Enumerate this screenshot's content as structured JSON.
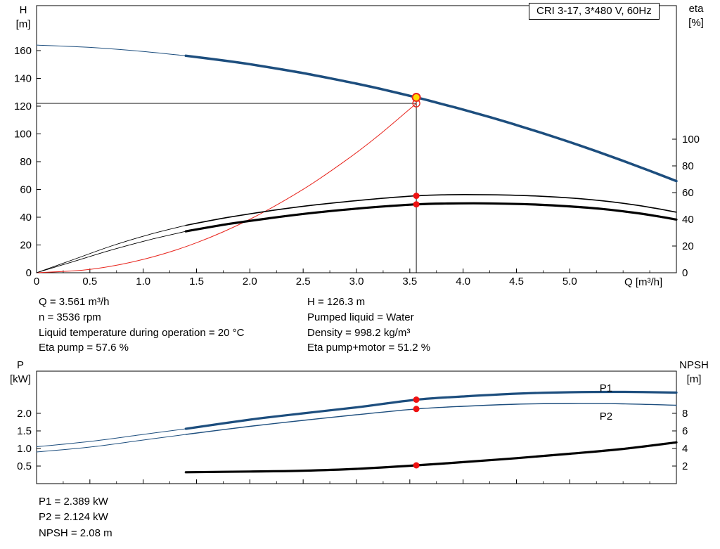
{
  "header": {
    "model_box": "CRI 3-17, 3*480 V, 60Hz"
  },
  "colors": {
    "curve_blue": "#1d4e7e",
    "curve_black": "#000000",
    "curve_red": "#e8251d",
    "duty_yellow": "#ffd900",
    "marker_red": "#ee1111"
  },
  "annotations": {
    "upper_left": [
      "Q = 3.561 m³/h",
      "n = 3536 rpm",
      "Liquid temperature during operation = 20 °C",
      "Eta pump = 57.6 %"
    ],
    "upper_right": [
      "H = 126.3 m",
      "Pumped liquid = Water",
      "Density = 998.2 kg/m³",
      "Eta pump+motor = 51.2 %"
    ],
    "lower": [
      "P1 = 2.389 kW",
      "P2 = 2.124 kW",
      "NPSH = 2.08 m"
    ]
  },
  "chart_data": [
    {
      "id": "qh-chart",
      "type": "line",
      "title": "CRI 3-17, 3*480 V, 60Hz",
      "x_axis": {
        "label": "Q [m³/h]",
        "min": 0,
        "max": 6,
        "ticks": [
          0,
          0.5,
          1,
          1.5,
          2,
          2.5,
          3,
          3.5,
          4,
          4.5,
          5
        ],
        "tick_labels": [
          "0",
          "0.5",
          "1.0",
          "1.5",
          "2.0",
          "2.5",
          "3.0",
          "3.5",
          "4.0",
          "4.5",
          "5.0"
        ],
        "minor_step": 0.25
      },
      "y_left": {
        "label": "H [m]",
        "label_lines": [
          "H",
          "[m]"
        ],
        "min": 0,
        "max": 192.4,
        "ticks": [
          0,
          20,
          40,
          60,
          80,
          100,
          120,
          140,
          160
        ],
        "tick_labels": [
          "0",
          "20",
          "40",
          "60",
          "80",
          "100",
          "120",
          "140",
          "160"
        ]
      },
      "y_right": {
        "label": "eta [%]",
        "label_lines": [
          "eta",
          "[%]"
        ],
        "min": 0,
        "max": 200,
        "ticks": [
          0,
          20,
          40,
          60,
          80,
          100
        ],
        "tick_labels": [
          "0",
          "20",
          "40",
          "60",
          "80",
          "100"
        ]
      },
      "duty_point": {
        "Q": 3.561,
        "H": 126.3,
        "eta_pump": 57.6,
        "eta_pump_motor": 51.2
      },
      "series": [
        {
          "name": "head-curve-lead",
          "axis": "left",
          "color": "#1d4e7e",
          "width": 1,
          "points": [
            [
              0,
              164
            ],
            [
              0.5,
              162.3
            ],
            [
              1,
              159.4
            ],
            [
              1.4,
              156.3
            ]
          ]
        },
        {
          "name": "head-curve",
          "axis": "left",
          "color": "#1d4e7e",
          "width": 3.5,
          "points": [
            [
              1.4,
              156.3
            ],
            [
              1.75,
              152.9
            ],
            [
              2,
              150.2
            ],
            [
              2.25,
              147.1
            ],
            [
              2.5,
              143.8
            ],
            [
              2.75,
              140.1
            ],
            [
              3,
              136.2
            ],
            [
              3.25,
              132
            ],
            [
              3.561,
              126.3
            ],
            [
              3.75,
              122.6
            ],
            [
              4,
              117.5
            ],
            [
              4.25,
              112.1
            ],
            [
              4.5,
              106.4
            ],
            [
              4.75,
              100.4
            ],
            [
              5,
              94.1
            ],
            [
              5.25,
              87.5
            ],
            [
              5.5,
              80.6
            ],
            [
              5.75,
              73.4
            ],
            [
              6,
              66
            ]
          ]
        },
        {
          "name": "system-curve",
          "axis": "left",
          "color": "#e8251d",
          "width": 1,
          "points": [
            [
              0,
              0
            ],
            [
              0.5,
              2.4
            ],
            [
              1,
              9.6
            ],
            [
              1.5,
              21.6
            ],
            [
              2,
              38.5
            ],
            [
              2.5,
              60.1
            ],
            [
              2.9,
              80.9
            ],
            [
              3.2,
              98.5
            ],
            [
              3.561,
              122
            ]
          ]
        },
        {
          "name": "eta-pump-lead",
          "axis": "right",
          "color": "#000000",
          "width": 0.9,
          "points": [
            [
              0,
              0
            ],
            [
              0.35,
              10
            ],
            [
              0.7,
              20
            ],
            [
              1.05,
              28.5
            ],
            [
              1.4,
              35.5
            ]
          ]
        },
        {
          "name": "eta-pump",
          "axis": "right",
          "color": "#000000",
          "width": 1.6,
          "points": [
            [
              1.4,
              35.5
            ],
            [
              1.8,
              41.5
            ],
            [
              2.2,
              46.5
            ],
            [
              2.6,
              50.7
            ],
            [
              3,
              54
            ],
            [
              3.3,
              56.1
            ],
            [
              3.561,
              57.6
            ],
            [
              3.8,
              58.3
            ],
            [
              4.1,
              58.5
            ],
            [
              4.4,
              58.2
            ],
            [
              4.7,
              57.4
            ],
            [
              5,
              56
            ],
            [
              5.3,
              53.9
            ],
            [
              5.6,
              50.9
            ],
            [
              5.8,
              48.3
            ],
            [
              6,
              45.3
            ]
          ]
        },
        {
          "name": "eta-pump-motor-lead",
          "axis": "right",
          "color": "#000000",
          "width": 0.9,
          "points": [
            [
              0,
              0
            ],
            [
              0.35,
              8.5
            ],
            [
              0.7,
              17
            ],
            [
              1.05,
              24.5
            ],
            [
              1.4,
              31
            ]
          ]
        },
        {
          "name": "eta-pump-motor",
          "axis": "right",
          "color": "#000000",
          "width": 3.2,
          "points": [
            [
              1.4,
              31
            ],
            [
              1.8,
              36.5
            ],
            [
              2.2,
              41
            ],
            [
              2.6,
              44.9
            ],
            [
              3,
              48
            ],
            [
              3.3,
              49.9
            ],
            [
              3.561,
              51.2
            ],
            [
              3.8,
              51.8
            ],
            [
              4.1,
              52
            ],
            [
              4.4,
              51.7
            ],
            [
              4.7,
              51
            ],
            [
              5,
              49.7
            ],
            [
              5.3,
              47.8
            ],
            [
              5.6,
              45
            ],
            [
              5.8,
              42.6
            ],
            [
              6,
              39.8
            ]
          ]
        }
      ],
      "guides": [
        {
          "name": "duty-flow-line",
          "orient": "v",
          "axis": "left",
          "x": 3.561,
          "from": 0,
          "to": 126.3
        },
        {
          "name": "duty-head-line",
          "orient": "h",
          "axis": "left",
          "y": 122,
          "from": 0,
          "to": 3.561
        }
      ],
      "markers": [
        {
          "name": "system-intersection-marker",
          "axis": "left",
          "x": 3.561,
          "y": 122,
          "r": 5,
          "fill": "none",
          "stroke": "#e8251d",
          "stroke_width": 1.4
        },
        {
          "name": "duty-point-marker",
          "axis": "left",
          "x": 3.561,
          "y": 126.3,
          "r": 5.5,
          "fill": "#ffd900",
          "stroke": "#e8251d",
          "stroke_width": 2
        },
        {
          "name": "eta-pump-duty-marker",
          "axis": "right",
          "x": 3.561,
          "y": 57.6,
          "r": 4.5,
          "fill": "#ee1111"
        },
        {
          "name": "eta-pump-motor-duty-marker",
          "axis": "right",
          "x": 3.561,
          "y": 51.2,
          "r": 4.5,
          "fill": "#ee1111"
        }
      ],
      "labels": []
    },
    {
      "id": "power-chart",
      "type": "line",
      "title": "Power and NPSH",
      "x_axis": {
        "label": "",
        "min": 0,
        "max": 6,
        "ticks": [
          0,
          0.5,
          1,
          1.5,
          2,
          2.5,
          3,
          3.5,
          4,
          4.5,
          5
        ],
        "tick_labels": [],
        "minor_step": 0.25
      },
      "y_left": {
        "label": "P [kW]",
        "label_lines": [
          "P",
          "[kW]"
        ],
        "min": 0,
        "max": 3.2,
        "ticks": [
          0.5,
          1,
          1.5,
          2
        ],
        "tick_labels": [
          "0.5",
          "1.0",
          "1.5",
          "2.0"
        ]
      },
      "y_right": {
        "label": "NPSH [m]",
        "label_lines": [
          "NPSH",
          "[m]"
        ],
        "min": 0,
        "max": 12.8,
        "ticks": [
          2,
          4,
          6,
          8
        ],
        "tick_labels": [
          "2",
          "4",
          "6",
          "8"
        ]
      },
      "duty_point": {
        "Q": 3.561,
        "P1": 2.389,
        "P2": 2.124,
        "NPSH": 2.08
      },
      "series": [
        {
          "name": "p1-lead",
          "axis": "left",
          "color": "#1d4e7e",
          "width": 1,
          "points": [
            [
              0,
              1.05
            ],
            [
              0.5,
              1.2
            ],
            [
              1,
              1.4
            ],
            [
              1.4,
              1.56
            ]
          ]
        },
        {
          "name": "p1",
          "axis": "left",
          "color": "#1d4e7e",
          "width": 3.2,
          "points": [
            [
              1.4,
              1.56
            ],
            [
              2,
              1.82
            ],
            [
              2.5,
              2
            ],
            [
              3,
              2.17
            ],
            [
              3.561,
              2.389
            ],
            [
              4,
              2.48
            ],
            [
              4.5,
              2.56
            ],
            [
              5,
              2.6
            ],
            [
              5.5,
              2.61
            ],
            [
              6,
              2.59
            ]
          ]
        },
        {
          "name": "p2-lead",
          "axis": "left",
          "color": "#1d4e7e",
          "width": 1,
          "points": [
            [
              0,
              0.9
            ],
            [
              0.5,
              1.04
            ],
            [
              1,
              1.24
            ],
            [
              1.4,
              1.4
            ]
          ]
        },
        {
          "name": "p2",
          "axis": "left",
          "color": "#1d4e7e",
          "width": 1.4,
          "points": [
            [
              1.4,
              1.4
            ],
            [
              2,
              1.63
            ],
            [
              2.5,
              1.8
            ],
            [
              3,
              1.96
            ],
            [
              3.561,
              2.124
            ],
            [
              4,
              2.2
            ],
            [
              4.5,
              2.26
            ],
            [
              5,
              2.28
            ],
            [
              5.5,
              2.27
            ],
            [
              6,
              2.23
            ]
          ]
        },
        {
          "name": "npsh",
          "axis": "right",
          "color": "#000000",
          "width": 3.2,
          "points": [
            [
              1.4,
              1.3
            ],
            [
              2,
              1.38
            ],
            [
              2.5,
              1.47
            ],
            [
              3,
              1.68
            ],
            [
              3.561,
              2.08
            ],
            [
              4,
              2.45
            ],
            [
              4.5,
              2.9
            ],
            [
              5,
              3.4
            ],
            [
              5.5,
              3.95
            ],
            [
              6,
              4.7
            ]
          ]
        }
      ],
      "guides": [],
      "markers": [
        {
          "name": "p1-duty-marker",
          "axis": "left",
          "x": 3.561,
          "y": 2.389,
          "r": 4.5,
          "fill": "#ee1111"
        },
        {
          "name": "p2-duty-marker",
          "axis": "left",
          "x": 3.561,
          "y": 2.124,
          "r": 4.5,
          "fill": "#ee1111"
        },
        {
          "name": "npsh-duty-marker",
          "axis": "right",
          "x": 3.561,
          "y": 2.08,
          "r": 4.5,
          "fill": "#ee1111"
        }
      ],
      "labels": [
        {
          "text": "P1",
          "axis": "left",
          "x": 5.28,
          "y": 2.62,
          "color": "#1d4e7e"
        },
        {
          "text": "P2",
          "axis": "left",
          "x": 5.28,
          "y": 1.82,
          "color": "#1d4e7e"
        }
      ]
    }
  ]
}
